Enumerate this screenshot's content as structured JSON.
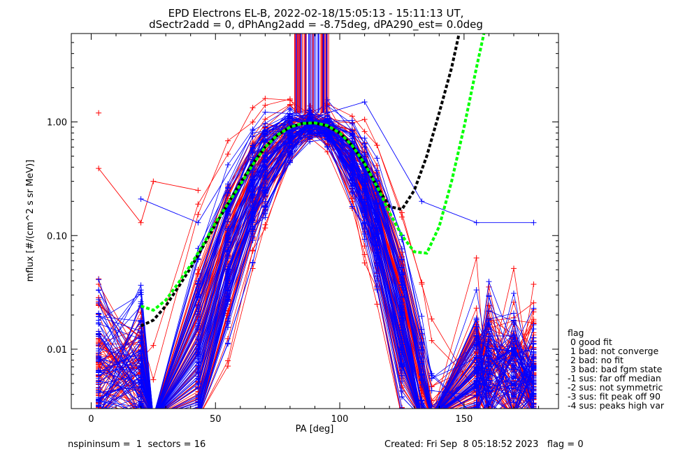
{
  "chart_data": {
    "type": "line",
    "title": "EPD Electrons EL-B, 2022-02-18/15:05:13 - 15:11:13 UT,",
    "subtitle": "dSectr2add = 0, dPhAng2add = -8.75deg, dPA290_est=   0.0deg",
    "xlabel": "PA [deg]",
    "ylabel": "mflux [#/(cm^2 s sr MeV)]",
    "xlim": [
      -8,
      188
    ],
    "ylim": [
      0.003,
      6.0
    ],
    "yscale": "log",
    "x_ticks": [
      0,
      50,
      100,
      150
    ],
    "x_tick_labels": [
      "0",
      "50",
      "100",
      "150"
    ],
    "y_ticks": [
      0.01,
      0.1,
      1.0
    ],
    "y_tick_labels": [
      "0.01",
      "0.10",
      "1.00"
    ],
    "series": [
      {
        "style": "red traces with plus markers",
        "color": "#ff0000",
        "x": [
          3,
          20,
          25,
          43,
          55,
          65,
          70,
          80,
          88,
          95,
          105,
          110,
          115,
          125,
          133,
          137,
          155,
          160,
          170,
          178
        ],
        "y_examples": [
          [
            1.2,
            null,
            null,
            null,
            null,
            null,
            null,
            null,
            null,
            null,
            null,
            null,
            null,
            null,
            null,
            null,
            null,
            null,
            null,
            null
          ],
          [
            0.39,
            0.13,
            0.3,
            0.25,
            null,
            null,
            null,
            null,
            null,
            null,
            null,
            null,
            null,
            null,
            null,
            null,
            null,
            null,
            null,
            null
          ]
        ]
      },
      {
        "style": "blue traces with plus markers",
        "color": "#0000ff",
        "x": [
          3,
          20,
          25,
          43,
          55,
          65,
          70,
          80,
          88,
          95,
          105,
          110,
          115,
          125,
          133,
          137,
          155,
          160,
          170,
          178
        ],
        "y_examples": [
          [
            null,
            0.21,
            null,
            0.13,
            null,
            0.8,
            null,
            0.9,
            1.05,
            1.2,
            null,
            1.5,
            null,
            null,
            0.2,
            null,
            0.13,
            null,
            null,
            0.13
          ]
        ]
      },
      {
        "style": "black dashed fit",
        "color": "#000000",
        "x": [
          20,
          25,
          30,
          35,
          40,
          45,
          50,
          55,
          60,
          65,
          70,
          75,
          80,
          85,
          90,
          95,
          100,
          105,
          110,
          115,
          120,
          125,
          130,
          135,
          140,
          145,
          148
        ],
        "y": [
          0.016,
          0.018,
          0.024,
          0.035,
          0.052,
          0.08,
          0.125,
          0.19,
          0.29,
          0.43,
          0.6,
          0.77,
          0.9,
          0.97,
          0.98,
          0.92,
          0.8,
          0.62,
          0.43,
          0.27,
          0.18,
          0.17,
          0.25,
          0.5,
          1.2,
          3.0,
          6.0
        ]
      },
      {
        "style": "green dashed fit",
        "color": "#00ff00",
        "x": [
          20,
          25,
          30,
          35,
          40,
          45,
          50,
          55,
          60,
          65,
          70,
          75,
          80,
          85,
          90,
          95,
          100,
          105,
          110,
          115,
          120,
          125,
          130,
          135,
          140,
          145,
          150,
          155,
          158
        ],
        "y": [
          0.024,
          0.022,
          0.027,
          0.038,
          0.055,
          0.083,
          0.13,
          0.19,
          0.28,
          0.42,
          0.6,
          0.77,
          0.9,
          0.97,
          0.98,
          0.93,
          0.8,
          0.62,
          0.43,
          0.27,
          0.16,
          0.1,
          0.072,
          0.07,
          0.12,
          0.3,
          0.9,
          3.0,
          6.0
        ]
      }
    ],
    "legend": {
      "placement": "right, below plot",
      "title": "flag",
      "items": [
        " 0 good fit",
        " 1 bad: not converge",
        " 2 bad: no fit",
        " 3 bad: bad fgm state",
        "-1 sus: far off median",
        "-2 sus: not symmetric",
        "-3 sus: fit peak off 90",
        "-4 sus: peaks high var"
      ]
    },
    "grid": false
  },
  "footer": {
    "left": "nspininsum =  1  sectors = 16",
    "right": "Created: Fri Sep  8 05:18:52 2023   flag = 0"
  }
}
